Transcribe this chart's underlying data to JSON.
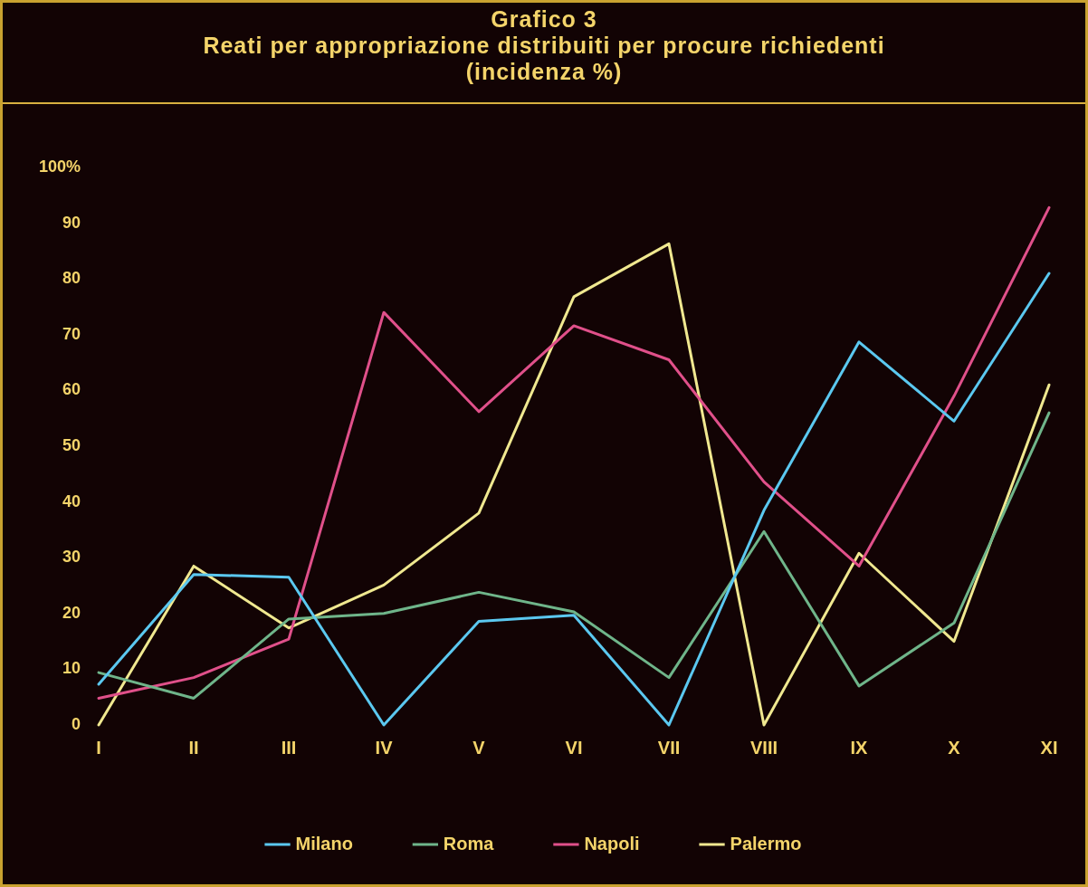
{
  "chart_data": {
    "type": "line",
    "title": "Grafico 3",
    "subtitle": "Reati per appropriazione distribuiti per procure richiedenti\n(incidenza %)",
    "categories": [
      "I",
      "II",
      "III",
      "IV",
      "V",
      "VI",
      "VII",
      "VIII",
      "IX",
      "X",
      "XI"
    ],
    "series": [
      {
        "name": "Milano",
        "color": "#5bc8f0",
        "values": [
          7.3,
          27,
          26.5,
          0,
          18.6,
          19.7,
          0,
          38.5,
          68.7,
          54.5,
          81
        ]
      },
      {
        "name": "Roma",
        "color": "#6fb58a",
        "values": [
          9.4,
          4.8,
          19,
          20,
          23.8,
          20.3,
          8.5,
          34.7,
          7,
          18.3,
          56
        ]
      },
      {
        "name": "Napoli",
        "color": "#e0508a",
        "values": [
          4.8,
          8.5,
          15.4,
          74,
          56.2,
          71.6,
          65.5,
          43.6,
          28.5,
          59,
          92.8
        ]
      },
      {
        "name": "Palermo",
        "color": "#f0e890",
        "values": [
          0,
          28.5,
          17.4,
          25.1,
          38,
          76.8,
          86.3,
          0,
          30.8,
          15,
          61
        ]
      }
    ],
    "ylim": [
      0,
      100
    ],
    "yticks": [
      0,
      10,
      20,
      30,
      40,
      50,
      60,
      70,
      80,
      90,
      {
        "value": 100,
        "label": "100%"
      }
    ],
    "legend": "bottom",
    "marker": "none",
    "line_style": "solid"
  }
}
